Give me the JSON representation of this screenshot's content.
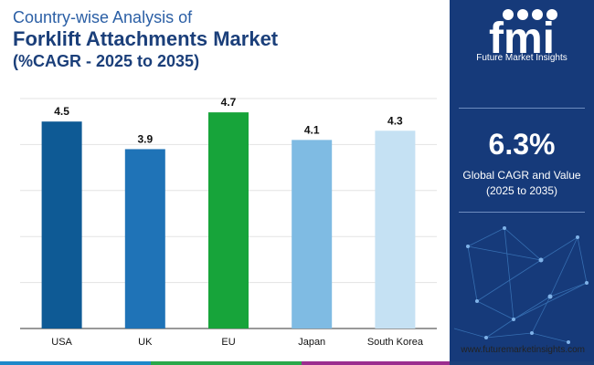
{
  "header": {
    "line1": "Country-wise Analysis of",
    "line2": "Forklift Attachments Market",
    "line3": "(%CAGR - 2025 to 2035)"
  },
  "sidebar": {
    "logo_text": "fmi",
    "logo_subtitle": "Future Market Insights",
    "cagr_value": "6.3%",
    "cagr_label_1": "Global CAGR and Value",
    "cagr_label_2": "(2025 to 2035)",
    "background": "#163a7a"
  },
  "footer": {
    "website": "www.futuremarketinsights.com",
    "bar_colors": [
      "#1e88c9",
      "#2aa84a",
      "#9b2d8f",
      "#1b3f7a"
    ]
  },
  "chart_data": {
    "type": "bar",
    "categories": [
      "USA",
      "UK",
      "EU",
      "Japan",
      "South Korea"
    ],
    "values": [
      4.5,
      3.9,
      4.7,
      4.1,
      4.3
    ],
    "data_labels": [
      "4.5",
      "3.9",
      "4.7",
      "4.1",
      "4.3"
    ],
    "colors": [
      "#0e5a95",
      "#1f73b7",
      "#17a43a",
      "#7fbbe3",
      "#c5e1f3"
    ],
    "title": "",
    "xlabel": "",
    "ylabel": "",
    "ylim": [
      0,
      5
    ],
    "grid": true,
    "legend": "none"
  }
}
